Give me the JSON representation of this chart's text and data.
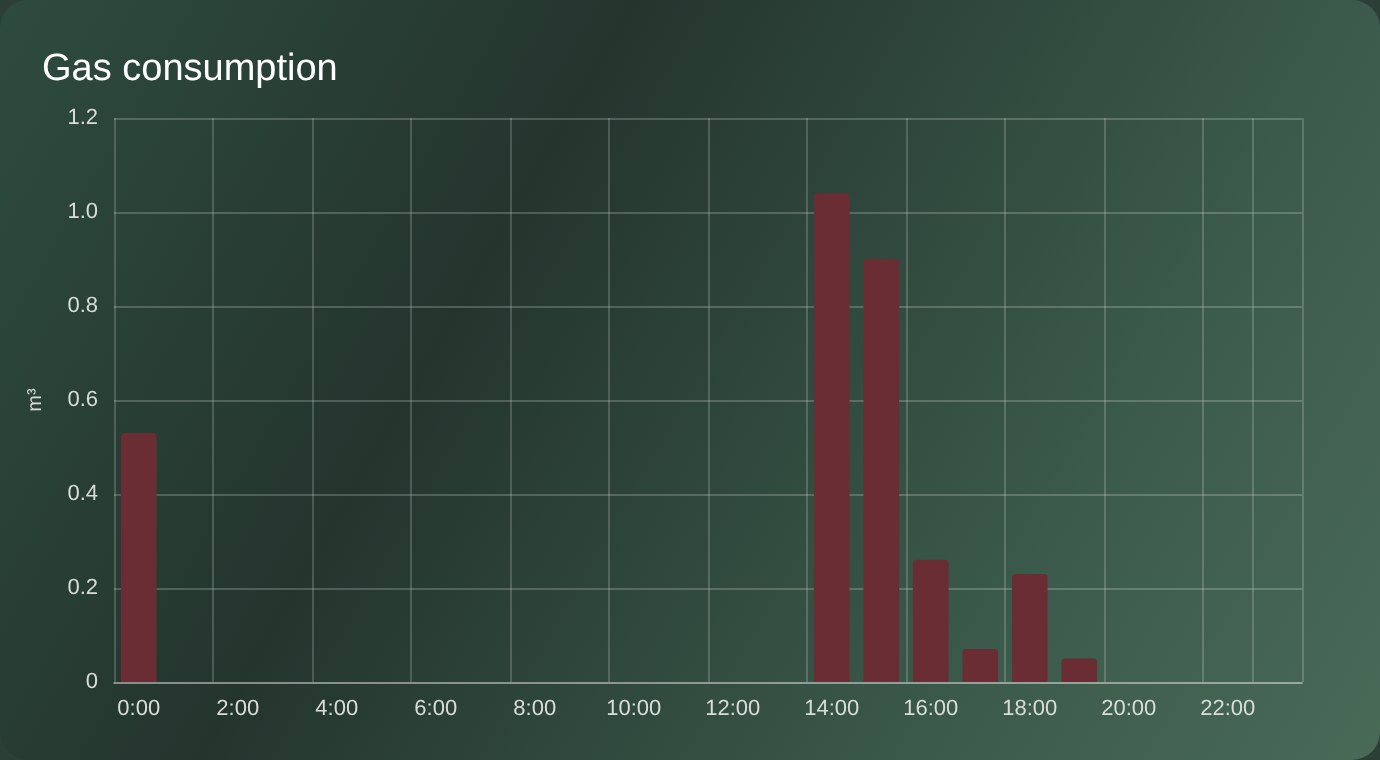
{
  "chart_data": {
    "type": "bar",
    "title": "Gas consumption",
    "ylabel": "m³",
    "categories": [
      "0:00",
      null,
      "2:00",
      null,
      "4:00",
      null,
      "6:00",
      null,
      "8:00",
      null,
      "10:00",
      null,
      "12:00",
      null,
      "14:00",
      null,
      "16:00",
      null,
      "18:00",
      null,
      "20:00",
      null,
      "22:00",
      null
    ],
    "values": [
      0.53,
      0,
      0,
      0,
      0,
      0,
      0,
      0,
      0,
      0,
      0,
      0,
      0,
      0,
      1.04,
      0.9,
      0.26,
      0.07,
      0.23,
      0.05,
      0,
      0,
      0,
      0
    ],
    "color": "#6a2d33",
    "ylim": [
      0,
      1.2
    ],
    "yticks": [
      0,
      {
        "value": 0.2,
        "label": "0.2"
      },
      {
        "value": 0.4,
        "label": "0.4"
      },
      {
        "value": 0.6,
        "label": "0.6"
      },
      {
        "value": 0.8,
        "label": "0.8"
      },
      {
        "value": 1,
        "label": "1.0"
      },
      {
        "value": 1.2,
        "label": "1.2"
      }
    ],
    "grid": true
  }
}
